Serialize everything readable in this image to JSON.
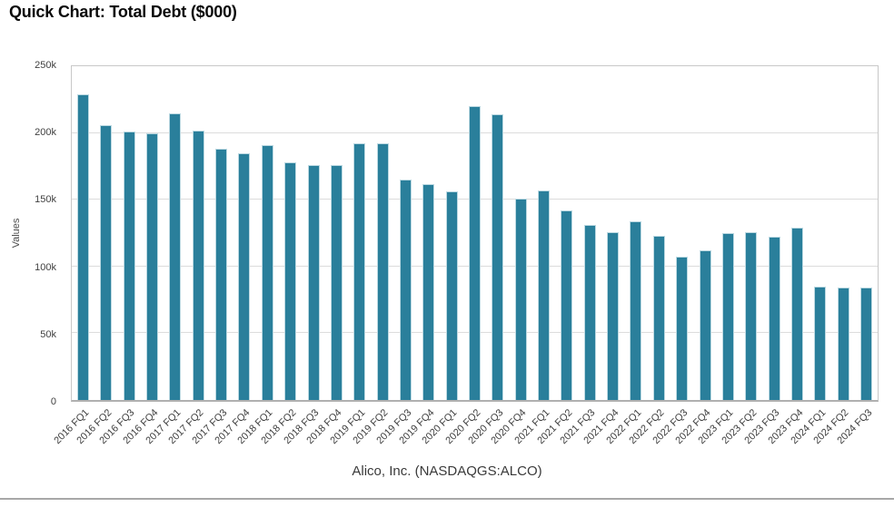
{
  "header": {
    "title": "Quick Chart: Total Debt ($000)"
  },
  "footer": {
    "subtitle": "Alico, Inc. (NASDAQGS:ALCO)"
  },
  "chart_data": {
    "type": "bar",
    "title": "Quick Chart: Total Debt ($000)",
    "xlabel": "Alico, Inc. (NASDAQGS:ALCO)",
    "ylabel": "Values",
    "values_unit": "thousands of $ ($000)",
    "ylim": [
      0,
      250
    ],
    "ytick_values": [
      0,
      50,
      100,
      150,
      200,
      250
    ],
    "ytick_labels": [
      "0",
      "50k",
      "100k",
      "150k",
      "200k",
      "250k"
    ],
    "grid": true,
    "legend": false,
    "bar_color": "#2A7F9B",
    "categories": [
      "2016 FQ1",
      "2016 FQ2",
      "2016 FQ3",
      "2016 FQ4",
      "2017 FQ1",
      "2017 FQ2",
      "2017 FQ3",
      "2017 FQ4",
      "2018 FQ1",
      "2018 FQ2",
      "2018 FQ3",
      "2018 FQ4",
      "2019 FQ1",
      "2019 FQ2",
      "2019 FQ3",
      "2019 FQ4",
      "2020 FQ1",
      "2020 FQ2",
      "2020 FQ3",
      "2020 FQ4",
      "2021 FQ1",
      "2021 FQ2",
      "2021 FQ3",
      "2021 FQ4",
      "2022 FQ1",
      "2022 FQ2",
      "2022 FQ3",
      "2022 FQ4",
      "2023 FQ1",
      "2023 FQ2",
      "2023 FQ3",
      "2023 FQ4",
      "2024 FQ1",
      "2024 FQ2",
      "2024 FQ3"
    ],
    "values": [
      229,
      206,
      201,
      200,
      215,
      202,
      188,
      185,
      191,
      178,
      176,
      176,
      192,
      192,
      165,
      162,
      156,
      220,
      214,
      151,
      157,
      142,
      131,
      126,
      134,
      123,
      107,
      112,
      125,
      126,
      122,
      129,
      85,
      84,
      84
    ]
  },
  "colors": {
    "bar": "#2A7F9B",
    "bar_border": "#BCD9E2",
    "grid_line": "#DCDCDC",
    "plot_border": "#C8C8C8",
    "axis_line": "#B0B0B0",
    "title_text": "#0A0A0A",
    "tick_text": "#3F3F3F",
    "subtitle_text": "#3A3A3A",
    "bottom_rule": "#A8A8A8"
  }
}
